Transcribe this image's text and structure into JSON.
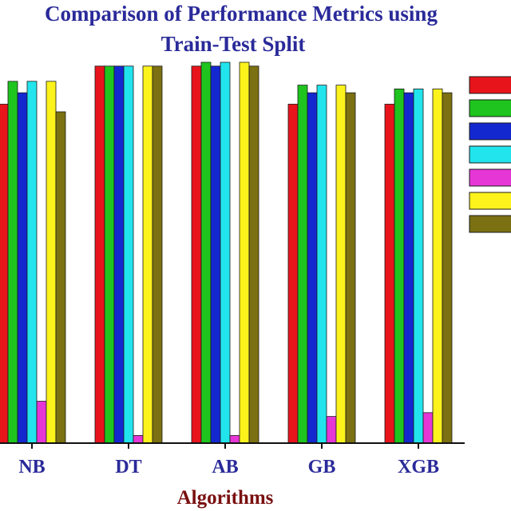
{
  "chart_data": {
    "type": "bar",
    "title_lines": [
      "Comparison of Performance Metrics using",
      "Train-Test Split"
    ],
    "xlabel": "Algorithms",
    "ylabel": "",
    "ylim": [
      0,
      1
    ],
    "categories": [
      "NB",
      "DT",
      "AB",
      "GB",
      "XGB"
    ],
    "series": [
      {
        "name": "",
        "color": "#e8141c",
        "values": [
          0.89,
          0.99,
          0.99,
          0.89,
          0.89
        ]
      },
      {
        "name": "",
        "color": "#1fc41f",
        "values": [
          0.95,
          0.99,
          1.0,
          0.94,
          0.93
        ]
      },
      {
        "name": "",
        "color": "#1428d0",
        "values": [
          0.92,
          0.99,
          0.99,
          0.92,
          0.92
        ]
      },
      {
        "name": "",
        "color": "#22e4ec",
        "values": [
          0.95,
          0.99,
          1.0,
          0.94,
          0.93
        ]
      },
      {
        "name": "",
        "color": "#e636d6",
        "values": [
          0.11,
          0.02,
          0.02,
          0.07,
          0.08
        ]
      },
      {
        "name": "",
        "color": "#fcf21c",
        "values": [
          0.95,
          0.99,
          1.0,
          0.94,
          0.93
        ]
      },
      {
        "name": "",
        "color": "#7b7012",
        "values": [
          0.87,
          0.99,
          0.99,
          0.92,
          0.92
        ]
      }
    ],
    "grid": false,
    "legend_position": "top-right"
  }
}
